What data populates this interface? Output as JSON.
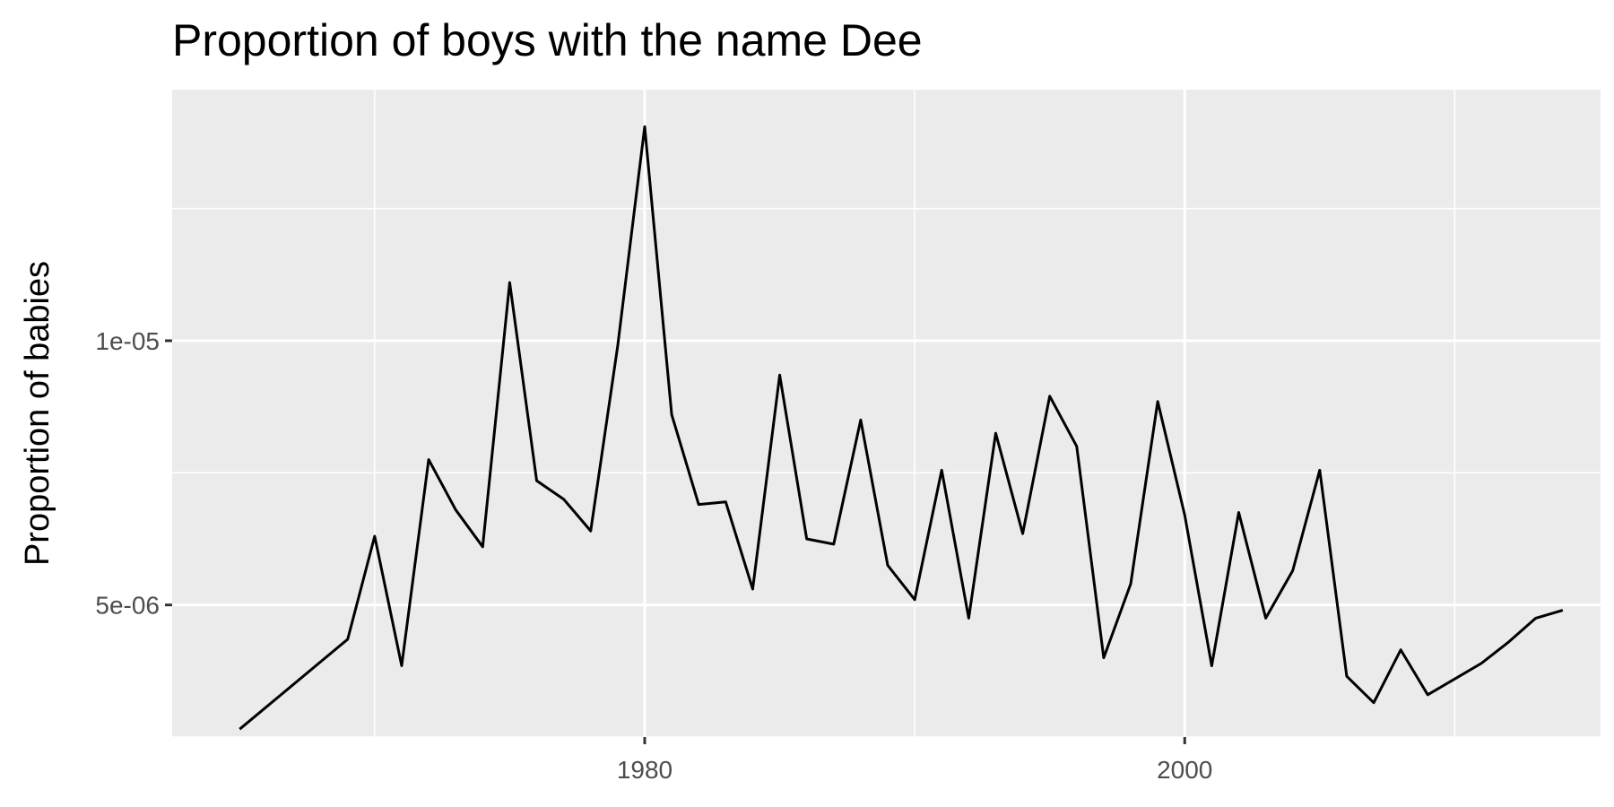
{
  "chart_data": {
    "type": "line",
    "title": "Proportion of boys with the name Dee",
    "xlabel": "",
    "ylabel": "Proportion of babies",
    "xlim": [
      1962.5,
      2015.4
    ],
    "ylim": [
      2.5e-06,
      1.475e-05
    ],
    "x_ticks": [
      1980,
      2000
    ],
    "x_tick_labels": [
      "1980",
      "2000"
    ],
    "x_minor_ticks": [
      1970,
      1990,
      2010
    ],
    "y_ticks": [
      5e-06,
      1e-05
    ],
    "y_tick_labels": [
      "5e-06",
      "1e-05"
    ],
    "y_minor_ticks": [
      2.5e-06,
      7.5e-06,
      1.25e-05
    ],
    "grid": true,
    "legend": "none",
    "colors": {
      "panel": "#ebebeb",
      "grid": "#ffffff",
      "line": "#000000",
      "tick_label": "#4d4d4d"
    },
    "series": [
      {
        "x": [
          1965,
          1969,
          1970,
          1971,
          1972,
          1973,
          1974,
          1975,
          1976,
          1977,
          1978,
          1979,
          1980,
          1981,
          1982,
          1983,
          1984,
          1985,
          1986,
          1987,
          1988,
          1989,
          1990,
          1991,
          1992,
          1993,
          1994,
          1995,
          1996,
          1997,
          1998,
          1999,
          2000,
          2001,
          2002,
          2003,
          2004,
          2005,
          2006,
          2007,
          2008,
          2009,
          2010,
          2011,
          2012,
          2013,
          2014
        ],
        "values": [
          2.65e-06,
          4.35e-06,
          6.3e-06,
          3.85e-06,
          7.75e-06,
          6.8e-06,
          6.1e-06,
          1.11e-05,
          7.35e-06,
          7e-06,
          6.4e-06,
          9.9e-06,
          1.405e-05,
          8.6e-06,
          6.9e-06,
          6.95e-06,
          5.3e-06,
          9.35e-06,
          6.25e-06,
          6.15e-06,
          8.5e-06,
          5.75e-06,
          5.1e-06,
          7.55e-06,
          4.75e-06,
          8.25e-06,
          6.35e-06,
          8.95e-06,
          8e-06,
          4e-06,
          5.4e-06,
          8.85e-06,
          6.7e-06,
          3.85e-06,
          6.75e-06,
          4.75e-06,
          5.65e-06,
          7.55e-06,
          3.65e-06,
          3.15e-06,
          4.15e-06,
          3.3e-06,
          3.6e-06,
          3.9e-06,
          4.3e-06,
          4.75e-06,
          4.9e-06
        ]
      }
    ]
  }
}
